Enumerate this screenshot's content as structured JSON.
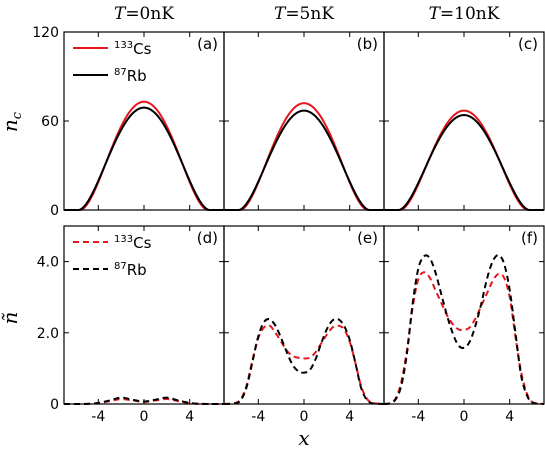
{
  "figure": {
    "column_titles": [
      {
        "var": "T",
        "value": "=0nK"
      },
      {
        "var": "T",
        "value": "=5nK"
      },
      {
        "var": "T",
        "value": "=10nK"
      }
    ],
    "xlabel": "x",
    "top_ylabel": "n",
    "top_ylabel_sub": "c",
    "bottom_ylabel": "ñ"
  },
  "chart_data": [
    {
      "type": "line",
      "panel": "(a)",
      "row": "top",
      "col": 0,
      "xlim": [
        -7,
        7
      ],
      "ylim": [
        0,
        120
      ],
      "grid": false,
      "xticks": [
        -4,
        0,
        4
      ],
      "xticklabels": [],
      "yticks": [
        0,
        60,
        120
      ],
      "yticklabels": [
        "0",
        "60",
        "120"
      ],
      "legend": {
        "placement": "top-left",
        "style": "solid"
      },
      "series": [
        {
          "name": "Cs",
          "isotope": "133",
          "color": "#e8161c",
          "dash": "solid",
          "peak": 73.0,
          "width": 5.6,
          "power": 1.9
        },
        {
          "name": "Rb",
          "isotope": "87",
          "color": "#000000",
          "dash": "solid",
          "peak": 69.0,
          "width": 5.75,
          "power": 1.9
        }
      ]
    },
    {
      "type": "line",
      "panel": "(b)",
      "row": "top",
      "col": 1,
      "xlim": [
        -7,
        7
      ],
      "ylim": [
        0,
        120
      ],
      "grid": false,
      "xticks": [
        -4,
        0,
        4
      ],
      "xticklabels": [],
      "yticks": [
        0,
        60,
        120
      ],
      "yticklabels": [],
      "series": [
        {
          "name": "Cs",
          "isotope": "133",
          "color": "#e8161c",
          "dash": "solid",
          "peak": 72.0,
          "width": 5.6,
          "power": 1.9
        },
        {
          "name": "Rb",
          "isotope": "87",
          "color": "#000000",
          "dash": "solid",
          "peak": 67.0,
          "width": 5.75,
          "power": 1.9
        }
      ]
    },
    {
      "type": "line",
      "panel": "(c)",
      "row": "top",
      "col": 2,
      "xlim": [
        -7,
        7
      ],
      "ylim": [
        0,
        120
      ],
      "grid": false,
      "xticks": [
        -4,
        0,
        4
      ],
      "xticklabels": [],
      "yticks": [
        0,
        60,
        120
      ],
      "yticklabels": [],
      "series": [
        {
          "name": "Cs",
          "isotope": "133",
          "color": "#e8161c",
          "dash": "solid",
          "peak": 67.0,
          "width": 5.6,
          "power": 1.9
        },
        {
          "name": "Rb",
          "isotope": "87",
          "color": "#000000",
          "dash": "solid",
          "peak": 64.0,
          "width": 5.75,
          "power": 1.9
        }
      ]
    },
    {
      "type": "line",
      "panel": "(d)",
      "row": "bottom",
      "col": 0,
      "xlim": [
        -7,
        7
      ],
      "ylim": [
        0,
        5
      ],
      "grid": false,
      "xticks": [
        -4,
        0,
        4
      ],
      "xticklabels": [
        "-4",
        "0",
        "4"
      ],
      "yticks": [
        0,
        2,
        4
      ],
      "yticklabels": [
        "0",
        "2.0",
        "4.0"
      ],
      "legend": {
        "placement": "top-left",
        "style": "dashed"
      },
      "series": [
        {
          "name": "Cs",
          "isotope": "133",
          "color": "#e8161c",
          "dash": "dashed",
          "x": [
            -7,
            -4.5,
            -3,
            -2,
            -1,
            0,
            1,
            2,
            3,
            4.5,
            7
          ],
          "y": [
            0,
            0.01,
            0.08,
            0.14,
            0.1,
            0.06,
            0.1,
            0.14,
            0.08,
            0.01,
            0
          ]
        },
        {
          "name": "Rb",
          "isotope": "87",
          "color": "#000000",
          "dash": "dashed",
          "x": [
            -7,
            -4.5,
            -3,
            -2,
            -1,
            0,
            1,
            2,
            3,
            4.5,
            7
          ],
          "y": [
            0,
            0.01,
            0.1,
            0.18,
            0.12,
            0.07,
            0.12,
            0.18,
            0.1,
            0.01,
            0
          ]
        }
      ]
    },
    {
      "type": "line",
      "panel": "(e)",
      "row": "bottom",
      "col": 1,
      "xlim": [
        -7,
        7
      ],
      "ylim": [
        0,
        5
      ],
      "grid": false,
      "xticks": [
        -4,
        0,
        4
      ],
      "xticklabels": [
        "-4",
        "0",
        "4"
      ],
      "yticks": [
        0,
        2,
        4
      ],
      "yticklabels": [],
      "series": [
        {
          "name": "Cs",
          "isotope": "133",
          "color": "#e8161c",
          "dash": "dashed",
          "x": [
            -7,
            -6,
            -5.5,
            -5,
            -4.5,
            -4,
            -3.5,
            -3,
            -2.5,
            -2,
            -1.5,
            -1,
            -0.5,
            0,
            0.5,
            1,
            1.5,
            2,
            2.5,
            3,
            3.5,
            4,
            4.5,
            5,
            5.5,
            6,
            7
          ],
          "y": [
            0,
            0.03,
            0.15,
            0.55,
            1.25,
            1.85,
            2.15,
            2.2,
            2.0,
            1.75,
            1.5,
            1.35,
            1.3,
            1.28,
            1.3,
            1.45,
            1.7,
            1.95,
            2.15,
            2.2,
            2.1,
            1.75,
            1.15,
            0.5,
            0.15,
            0.03,
            0
          ]
        },
        {
          "name": "Rb",
          "isotope": "87",
          "color": "#000000",
          "dash": "dashed",
          "x": [
            -7,
            -6,
            -5.5,
            -5,
            -4.5,
            -4,
            -3.5,
            -3,
            -2.5,
            -2,
            -1.5,
            -1,
            -0.5,
            0,
            0.5,
            1,
            1.5,
            2,
            2.5,
            3,
            3.5,
            4,
            4.5,
            5,
            5.5,
            6,
            7
          ],
          "y": [
            0,
            0.02,
            0.12,
            0.5,
            1.2,
            1.9,
            2.3,
            2.38,
            2.2,
            1.85,
            1.45,
            1.1,
            0.92,
            0.88,
            0.95,
            1.25,
            1.7,
            2.1,
            2.35,
            2.38,
            2.2,
            1.8,
            1.15,
            0.45,
            0.12,
            0.02,
            0
          ]
        }
      ]
    },
    {
      "type": "line",
      "panel": "(f)",
      "row": "bottom",
      "col": 2,
      "xlim": [
        -7,
        7
      ],
      "ylim": [
        0,
        5
      ],
      "grid": false,
      "xticks": [
        -4,
        0,
        4
      ],
      "xticklabels": [
        "-4",
        "0",
        "4"
      ],
      "yticks": [
        0,
        2,
        4
      ],
      "yticklabels": [],
      "series": [
        {
          "name": "Cs",
          "isotope": "133",
          "color": "#e8161c",
          "dash": "dashed",
          "x": [
            -7,
            -6.5,
            -6,
            -5.5,
            -5,
            -4.5,
            -4,
            -3.5,
            -3,
            -2.5,
            -2,
            -1.5,
            -1,
            -0.5,
            0,
            0.5,
            1,
            1.5,
            2,
            2.5,
            3,
            3.5,
            4,
            4.5,
            5,
            5.5,
            6,
            7
          ],
          "y": [
            0,
            0.02,
            0.15,
            0.6,
            1.5,
            2.7,
            3.5,
            3.7,
            3.55,
            3.2,
            2.85,
            2.5,
            2.25,
            2.1,
            2.08,
            2.15,
            2.4,
            2.75,
            3.1,
            3.45,
            3.65,
            3.55,
            3.0,
            1.9,
            0.9,
            0.3,
            0.05,
            0
          ]
        },
        {
          "name": "Rb",
          "isotope": "87",
          "color": "#000000",
          "dash": "dashed",
          "x": [
            -7,
            -6.5,
            -6,
            -5.5,
            -5,
            -4.5,
            -4,
            -3.5,
            -3,
            -2.5,
            -2,
            -1.5,
            -1,
            -0.5,
            0,
            0.5,
            1,
            1.5,
            2,
            2.5,
            3,
            3.5,
            4,
            4.5,
            5,
            5.5,
            6,
            7
          ],
          "y": [
            0,
            0.02,
            0.12,
            0.5,
            1.4,
            2.8,
            3.8,
            4.15,
            4.1,
            3.7,
            3.1,
            2.5,
            2.0,
            1.65,
            1.58,
            1.75,
            2.2,
            2.8,
            3.5,
            4.0,
            4.18,
            3.95,
            3.2,
            2.0,
            0.8,
            0.25,
            0.04,
            0
          ]
        }
      ]
    }
  ]
}
